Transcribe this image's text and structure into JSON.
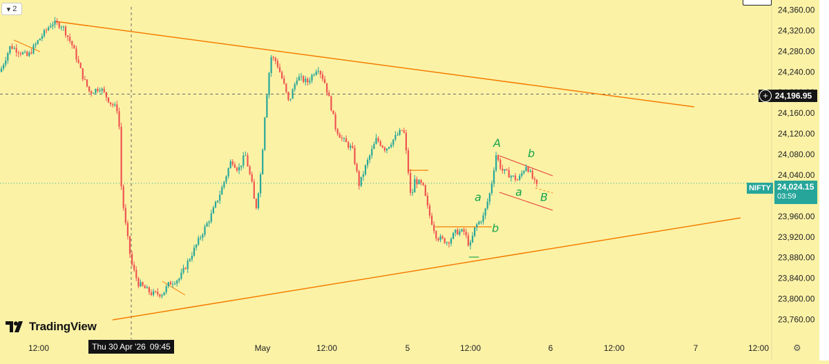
{
  "chart_data": {
    "type": "candlestick",
    "symbol": "NIFTY",
    "y_axis_labels": [
      "24,360.00",
      "24,320.00",
      "24,280.00",
      "24,240.00",
      "24,200.00",
      "24,160.00",
      "24,120.00",
      "24,080.00",
      "24,040.00",
      "23,960.00",
      "23,920.00",
      "23,880.00",
      "23,840.00",
      "23,800.00",
      "23,760.00"
    ],
    "y_axis_values": [
      24360,
      24320,
      24280,
      24240,
      24200,
      24160,
      24120,
      24080,
      24040,
      23960,
      23920,
      23880,
      23840,
      23800,
      23760
    ],
    "ylim": [
      23742,
      24366
    ],
    "x_axis_labels": [
      "12:00",
      "2:00",
      "May",
      "12:00",
      "5",
      "12:00",
      "6",
      "12:00",
      "7",
      "12:00"
    ],
    "x_axis_positions": [
      0,
      1,
      2,
      3,
      4,
      5,
      6,
      7,
      8,
      9
    ],
    "crosshair_price": "24,196.95",
    "crosshair_value": 24196.95,
    "current_price": "24,024.15",
    "current_value": 24024.15,
    "countdown": "03:59",
    "crosshair_date": "Thu 30 Apr '26",
    "crosshair_time": "09:45",
    "price_path": [
      [
        0,
        24240
      ],
      [
        15,
        24290
      ],
      [
        40,
        24270
      ],
      [
        55,
        24300
      ],
      [
        75,
        24335
      ],
      [
        90,
        24330
      ],
      [
        105,
        24290
      ],
      [
        120,
        24230
      ],
      [
        130,
        24200
      ],
      [
        145,
        24210
      ],
      [
        160,
        24180
      ],
      [
        172,
        24165
      ],
      [
        174,
        24040
      ],
      [
        180,
        23960
      ],
      [
        190,
        23870
      ],
      [
        200,
        23830
      ],
      [
        220,
        23810
      ],
      [
        235,
        23810
      ],
      [
        245,
        23830
      ],
      [
        260,
        23840
      ],
      [
        275,
        23880
      ],
      [
        290,
        23920
      ],
      [
        305,
        23960
      ],
      [
        320,
        24010
      ],
      [
        335,
        24070
      ],
      [
        345,
        24050
      ],
      [
        355,
        24080
      ],
      [
        365,
        24020
      ],
      [
        370,
        23970
      ],
      [
        378,
        24050
      ],
      [
        384,
        24170
      ],
      [
        392,
        24270
      ],
      [
        400,
        24260
      ],
      [
        410,
        24220
      ],
      [
        418,
        24180
      ],
      [
        430,
        24230
      ],
      [
        445,
        24220
      ],
      [
        460,
        24250
      ],
      [
        470,
        24220
      ],
      [
        478,
        24180
      ],
      [
        486,
        24130
      ],
      [
        495,
        24110
      ],
      [
        510,
        24090
      ],
      [
        520,
        24020
      ],
      [
        530,
        24060
      ],
      [
        545,
        24110
      ],
      [
        558,
        24090
      ],
      [
        570,
        24110
      ],
      [
        584,
        24130
      ],
      [
        590,
        24060
      ],
      [
        595,
        23990
      ],
      [
        600,
        24030
      ],
      [
        612,
        24020
      ],
      [
        620,
        23970
      ],
      [
        632,
        23920
      ],
      [
        648,
        23910
      ],
      [
        660,
        23930
      ],
      [
        672,
        23930
      ],
      [
        680,
        23900
      ],
      [
        688,
        23940
      ],
      [
        700,
        23960
      ],
      [
        710,
        24010
      ],
      [
        718,
        24080
      ],
      [
        726,
        24050
      ],
      [
        738,
        24040
      ],
      [
        750,
        24030
      ],
      [
        762,
        24060
      ],
      [
        772,
        24030
      ],
      [
        780,
        24010
      ]
    ],
    "annotations": [
      {
        "text": "A",
        "value": 24095
      },
      {
        "text": "b",
        "value": 24075
      },
      {
        "text": "a",
        "value": 23990
      },
      {
        "text": "a",
        "value": 24000
      },
      {
        "text": "b",
        "value": 23930
      },
      {
        "text": "B",
        "value": 23990
      },
      {
        "text": "—",
        "value": 23875
      }
    ],
    "colors": {
      "up": "#26a69a",
      "down": "#ef5350",
      "trendline": "#f57c00",
      "background": "#fbf2a6"
    }
  },
  "ui": {
    "collapse_label": "2",
    "logo_text": "TradingView",
    "settings_icon": "gear-icon",
    "add_icon": "plus-icon",
    "chevron_icon": "chevron-down-icon"
  }
}
